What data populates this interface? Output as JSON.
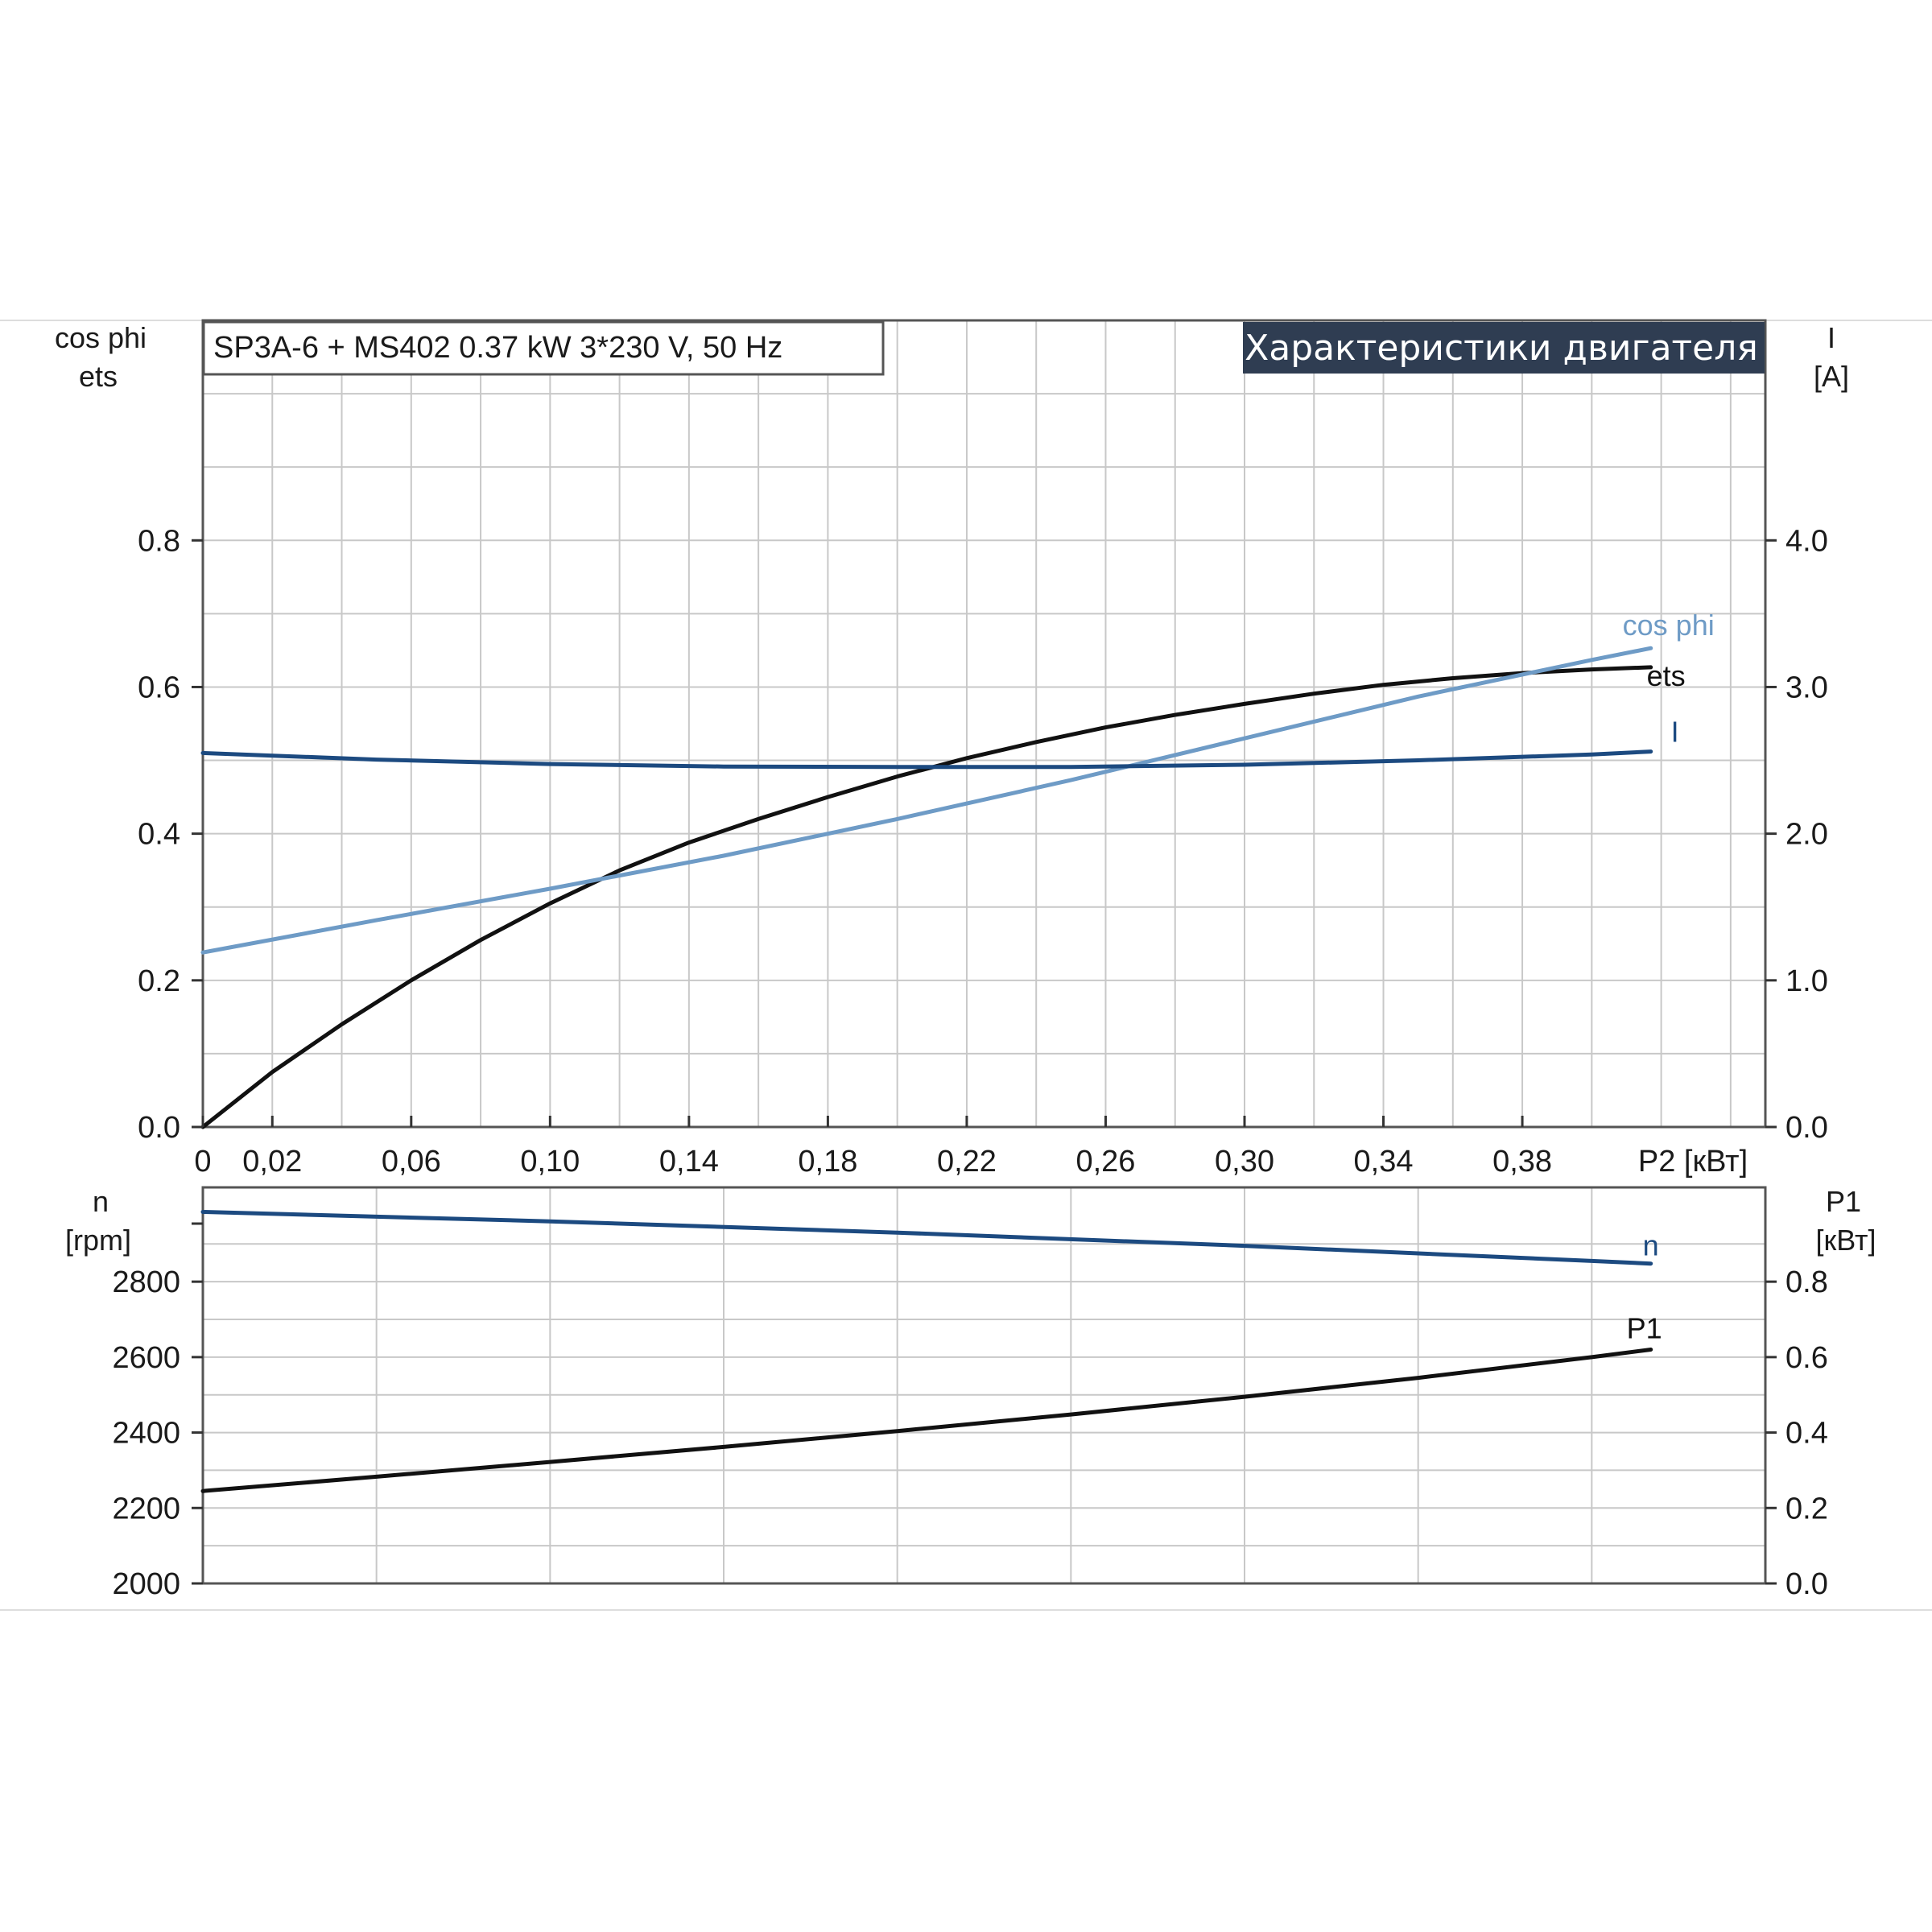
{
  "chart_data": [
    {
      "type": "line",
      "title": "Характеристики двигателя",
      "subtitle": "SP3A-6 + MS402   0.37 kW   3*230 V, 50 Hz",
      "xlabel": "P2 [кВт]",
      "x_ticks": [
        "0",
        "0,02",
        "0,06",
        "0,10",
        "0,14",
        "0,18",
        "0,22",
        "0,26",
        "0,30",
        "0,34",
        "0,38"
      ],
      "xlim": [
        0,
        0.45
      ],
      "ylabel_left": [
        "cos phi",
        "ets"
      ],
      "ylim_left": [
        0,
        1.1
      ],
      "y_ticks_left": [
        "0.0",
        "0.2",
        "0.4",
        "0.6",
        "0.8"
      ],
      "ylabel_right": [
        "I",
        "[A]"
      ],
      "ylim_right": [
        0,
        5.5
      ],
      "y_ticks_right": [
        "0.0",
        "1.0",
        "2.0",
        "3.0",
        "4.0"
      ],
      "grid": true,
      "series": [
        {
          "name": "ets",
          "axis": "left",
          "color": "#111111",
          "x": [
            0,
            0.02,
            0.04,
            0.06,
            0.08,
            0.1,
            0.12,
            0.14,
            0.16,
            0.18,
            0.2,
            0.22,
            0.24,
            0.26,
            0.28,
            0.3,
            0.32,
            0.34,
            0.36,
            0.38,
            0.4,
            0.417
          ],
          "y": [
            0,
            0.075,
            0.14,
            0.2,
            0.255,
            0.305,
            0.35,
            0.388,
            0.42,
            0.45,
            0.478,
            0.503,
            0.525,
            0.545,
            0.562,
            0.577,
            0.591,
            0.603,
            0.612,
            0.619,
            0.624,
            0.627
          ]
        },
        {
          "name": "cos phi",
          "axis": "left",
          "color": "#6e9bc6",
          "x": [
            0,
            0.05,
            0.1,
            0.15,
            0.2,
            0.25,
            0.3,
            0.35,
            0.4,
            0.417
          ],
          "y": [
            0.238,
            0.282,
            0.325,
            0.37,
            0.42,
            0.473,
            0.53,
            0.587,
            0.637,
            0.653
          ]
        },
        {
          "name": "I",
          "axis": "right",
          "color": "#1c4a80",
          "x": [
            0,
            0.05,
            0.1,
            0.15,
            0.2,
            0.25,
            0.3,
            0.35,
            0.4,
            0.417
          ],
          "y": [
            2.55,
            2.505,
            2.475,
            2.458,
            2.455,
            2.455,
            2.47,
            2.5,
            2.54,
            2.56
          ]
        }
      ]
    },
    {
      "type": "line",
      "xlim": [
        0,
        0.45
      ],
      "ylabel_left": [
        "n",
        "[rpm]"
      ],
      "ylim_left": [
        2000,
        3050
      ],
      "y_ticks_left": [
        "2000",
        "2200",
        "2400",
        "2600",
        "2800"
      ],
      "ylabel_right": [
        "P1",
        "[кВт]"
      ],
      "ylim_right": [
        0,
        1.05
      ],
      "y_ticks_right": [
        "0.0",
        "0.2",
        "0.4",
        "0.6",
        "0.8"
      ],
      "grid": true,
      "series": [
        {
          "name": "n",
          "axis": "left",
          "color": "#1c4a80",
          "x": [
            0,
            0.1,
            0.2,
            0.3,
            0.4,
            0.417
          ],
          "y": [
            2985,
            2960,
            2930,
            2895,
            2855,
            2848
          ]
        },
        {
          "name": "P1",
          "axis": "right",
          "color": "#111111",
          "x": [
            0,
            0.05,
            0.1,
            0.15,
            0.2,
            0.25,
            0.3,
            0.35,
            0.4,
            0.417
          ],
          "y": [
            0.245,
            0.283,
            0.322,
            0.362,
            0.404,
            0.448,
            0.495,
            0.545,
            0.6,
            0.62
          ]
        }
      ]
    }
  ]
}
